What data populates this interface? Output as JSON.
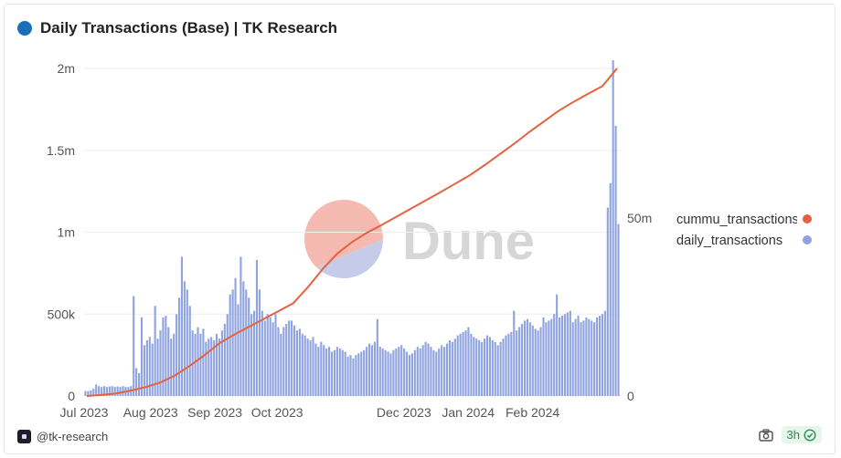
{
  "header": {
    "title": "Daily Transactions (Base) | TK Research",
    "dot_color": "#1a6fb8"
  },
  "footer": {
    "handle": "@tk-research",
    "freshness": "3h"
  },
  "icons": {
    "camera": "camera-icon",
    "check": "check-circle-icon",
    "brand": "dune-logo-icon"
  },
  "watermark": {
    "text": "Dune"
  },
  "colors": {
    "bars": "#8fa3e0",
    "line": "#e3623f",
    "watermark_top": "#f4b9b0",
    "watermark_bottom": "#c6cbe9"
  },
  "chart_data": {
    "type": "bar+line",
    "title": "Daily Transactions (Base) | TK Research",
    "x_ticks": [
      "Jul 2023",
      "Aug 2023",
      "Sep 2023",
      "Oct 2023",
      "Dec 2023",
      "Jan 2024",
      "Feb 2024"
    ],
    "x_range": [
      "2023-06-30",
      "2024-03-14"
    ],
    "y_left": {
      "ticks": [
        "0",
        "500k",
        "1m",
        "1.5m",
        "2m"
      ],
      "range": [
        0,
        2000000
      ]
    },
    "y_right": {
      "ticks": [
        "0",
        "50m"
      ],
      "range": [
        0,
        92000000
      ]
    },
    "legend_position": "right",
    "series": [
      {
        "name": "daily_transactions",
        "type": "bar",
        "axis": "left",
        "color": "#8fa3e0",
        "values": [
          30000,
          30000,
          35000,
          45000,
          70000,
          60000,
          55000,
          60000,
          55000,
          58000,
          60000,
          55000,
          58000,
          55000,
          60000,
          55000,
          55000,
          60000,
          610000,
          170000,
          140000,
          480000,
          310000,
          340000,
          360000,
          320000,
          550000,
          350000,
          400000,
          480000,
          490000,
          420000,
          350000,
          380000,
          500000,
          600000,
          850000,
          700000,
          650000,
          550000,
          400000,
          380000,
          420000,
          380000,
          410000,
          330000,
          350000,
          360000,
          340000,
          380000,
          350000,
          400000,
          440000,
          500000,
          620000,
          650000,
          720000,
          560000,
          850000,
          700000,
          650000,
          600000,
          500000,
          520000,
          830000,
          650000,
          520000,
          460000,
          500000,
          480000,
          450000,
          500000,
          420000,
          380000,
          420000,
          440000,
          460000,
          460000,
          430000,
          400000,
          410000,
          380000,
          370000,
          350000,
          340000,
          360000,
          320000,
          300000,
          330000,
          310000,
          290000,
          300000,
          270000,
          280000,
          300000,
          290000,
          280000,
          270000,
          240000,
          250000,
          230000,
          250000,
          260000,
          270000,
          280000,
          300000,
          320000,
          310000,
          330000,
          470000,
          300000,
          290000,
          280000,
          270000,
          260000,
          280000,
          290000,
          300000,
          310000,
          290000,
          270000,
          250000,
          260000,
          280000,
          300000,
          290000,
          310000,
          330000,
          320000,
          300000,
          280000,
          270000,
          290000,
          310000,
          300000,
          320000,
          340000,
          330000,
          350000,
          370000,
          380000,
          390000,
          400000,
          420000,
          380000,
          360000,
          350000,
          340000,
          330000,
          350000,
          370000,
          360000,
          340000,
          330000,
          310000,
          330000,
          350000,
          370000,
          380000,
          390000,
          520000,
          400000,
          420000,
          440000,
          460000,
          470000,
          450000,
          430000,
          410000,
          400000,
          420000,
          480000,
          450000,
          460000,
          470000,
          500000,
          620000,
          480000,
          490000,
          500000,
          510000,
          520000,
          450000,
          470000,
          490000,
          450000,
          460000,
          480000,
          470000,
          460000,
          450000,
          480000,
          490000,
          500000,
          520000,
          1150000,
          1300000,
          2050000,
          1650000,
          1050000
        ]
      },
      {
        "name": "cummu_transactions",
        "type": "line",
        "axis": "right",
        "color": "#e3623f",
        "values": [
          0,
          300000,
          700000,
          1500000,
          2500000,
          3800000,
          5800000,
          8500000,
          11500000,
          14800000,
          17200000,
          19400000,
          21600000,
          23800000,
          26000000,
          30500000,
          35600000,
          40000000,
          43200000,
          45800000,
          48000000,
          50300000,
          52600000,
          54900000,
          57200000,
          59600000,
          62000000,
          64800000,
          67800000,
          70800000,
          74000000,
          77000000,
          80000000,
          82500000,
          84800000,
          87000000,
          92000000
        ]
      }
    ]
  }
}
